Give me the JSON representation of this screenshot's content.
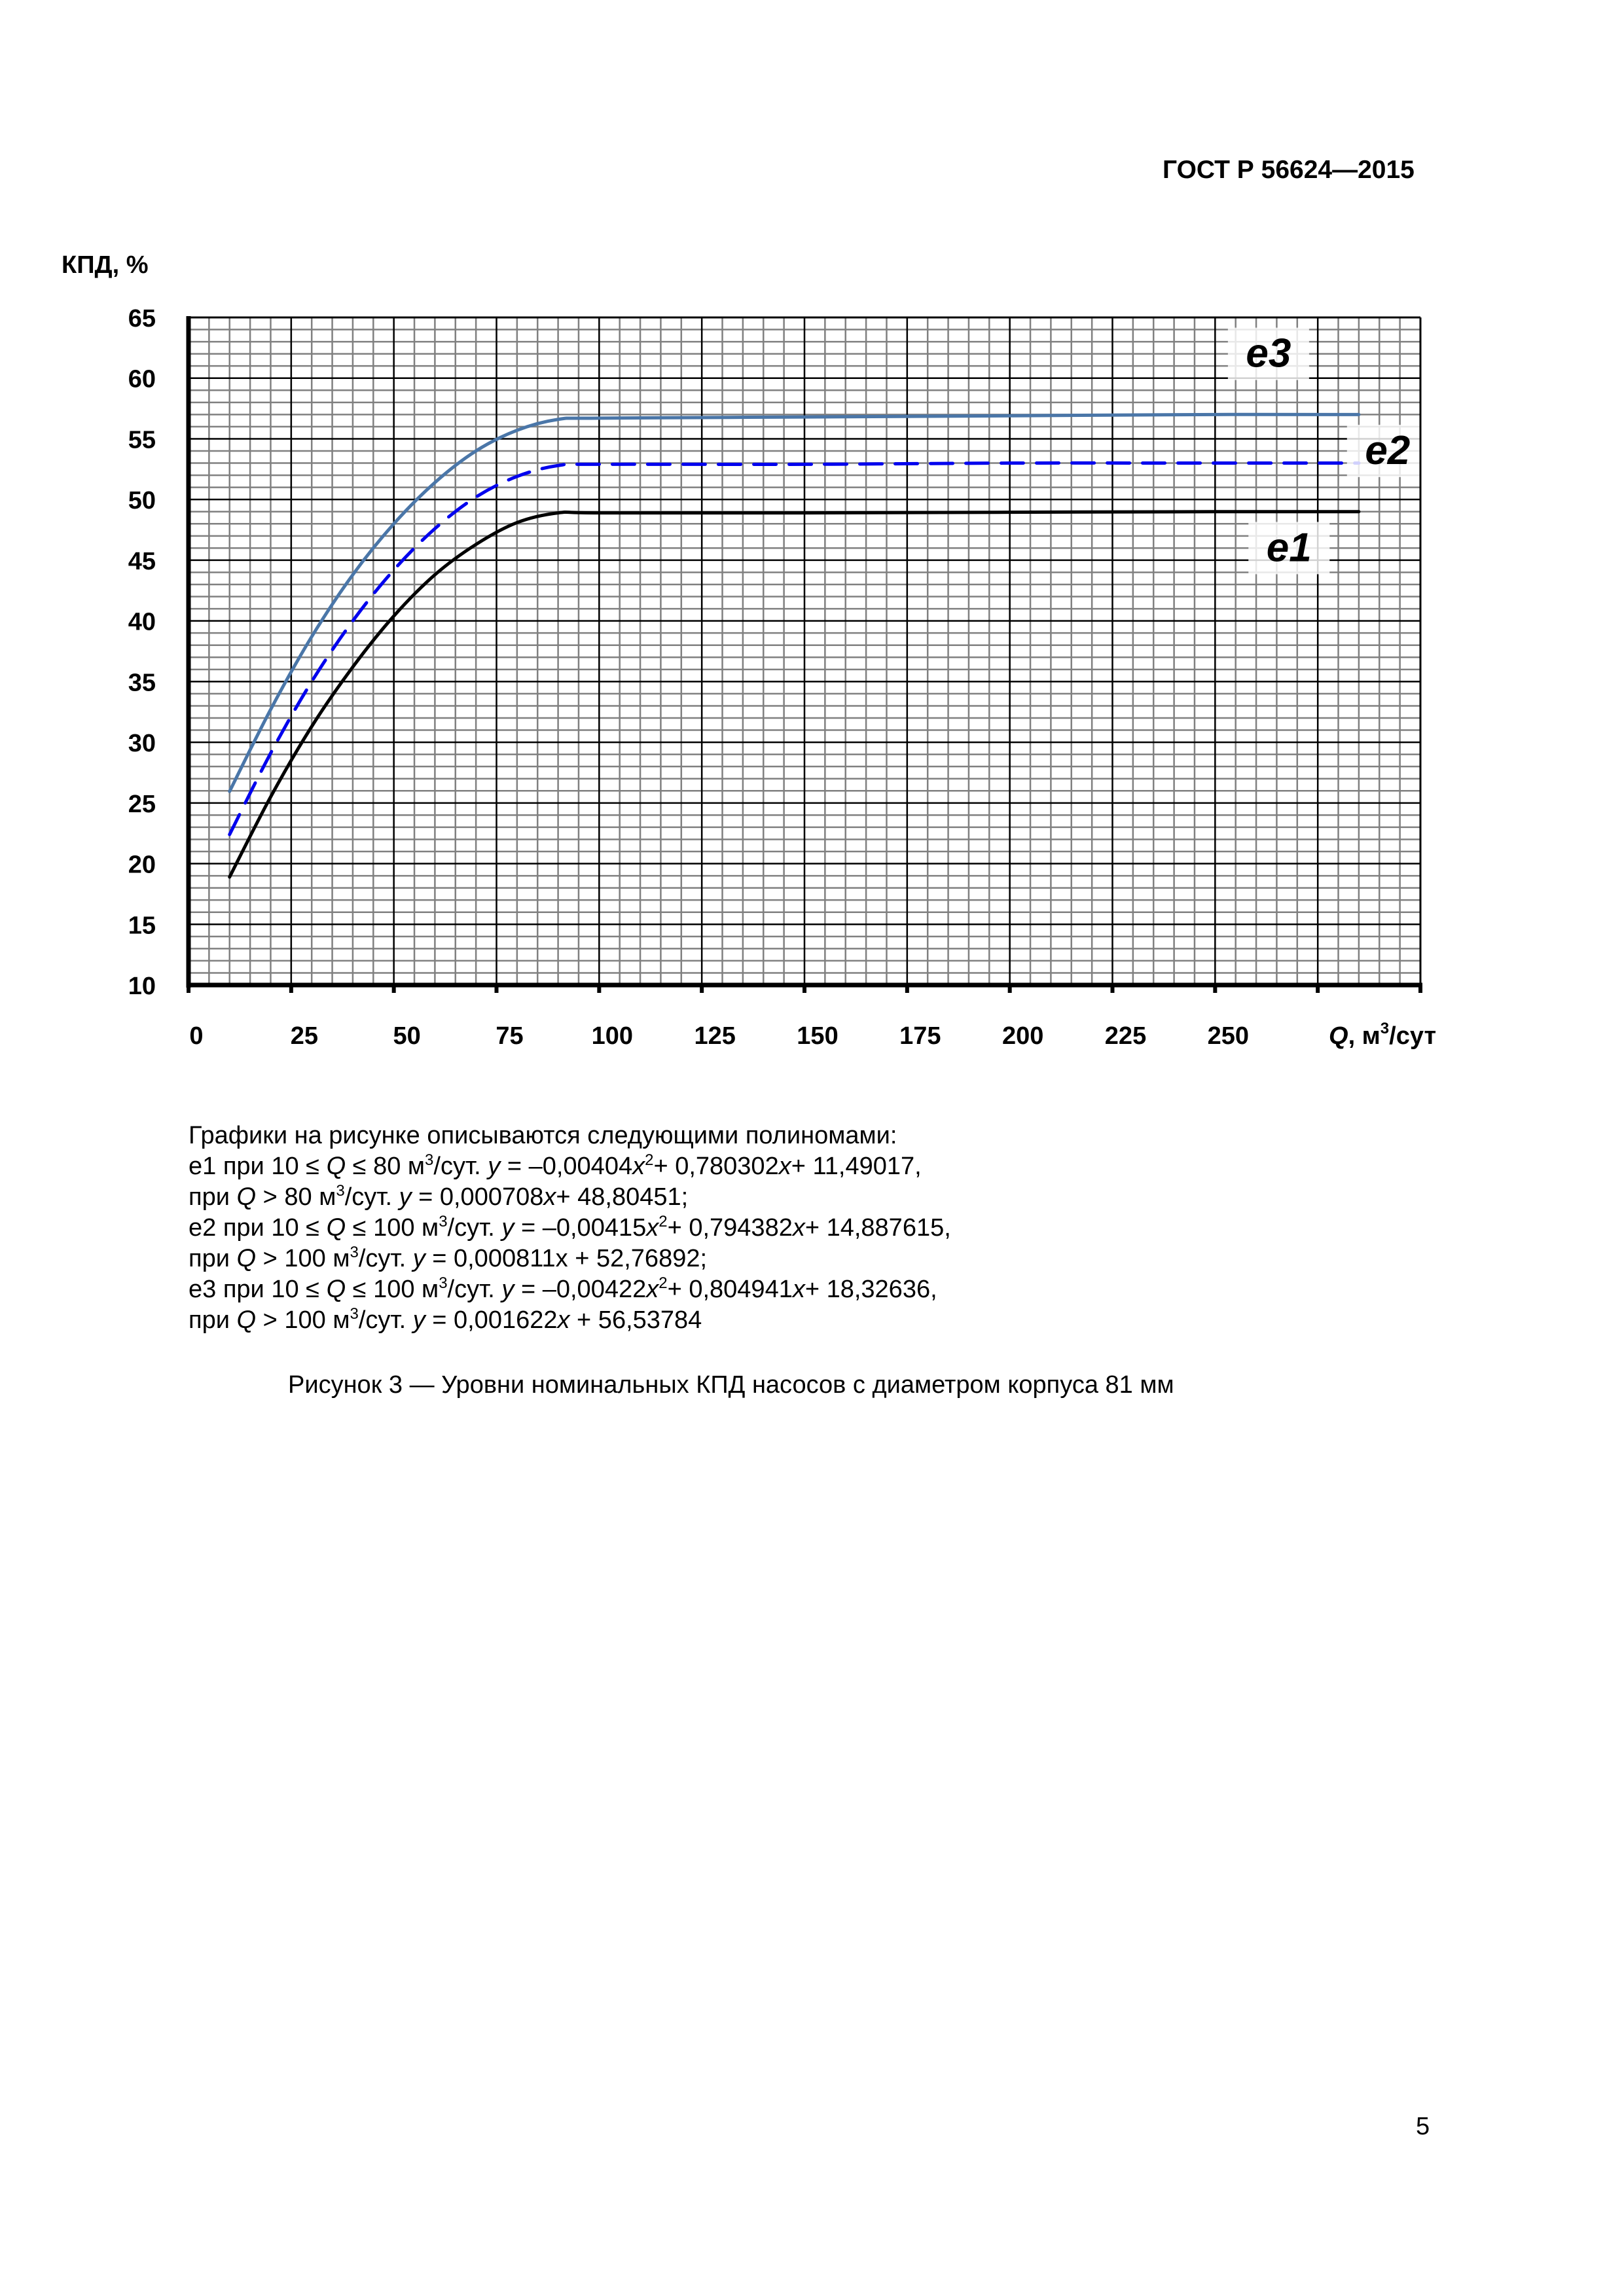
{
  "header": {
    "doc_code": "ГОСТ Р 56624—2015"
  },
  "chart_data": {
    "type": "line",
    "title": "",
    "ylabel": "КПД, %",
    "xlabel_prefix": "Q",
    "xlabel_suffix": ", м",
    "xlabel_sup": "3",
    "xlabel_tail": "/сут",
    "xlim": [
      0,
      300
    ],
    "ylim": [
      10,
      65
    ],
    "grid": true,
    "grid_minor_x": 5,
    "grid_minor_y": 1,
    "x_ticks": [
      0,
      25,
      50,
      75,
      100,
      125,
      150,
      175,
      200,
      225,
      250
    ],
    "x_tick_labels": [
      "0",
      "25",
      "50",
      "75",
      "100",
      "125",
      "150",
      "175",
      "200",
      "225",
      "250"
    ],
    "y_ticks": [
      10,
      15,
      20,
      25,
      30,
      35,
      40,
      45,
      50,
      55,
      60,
      65
    ],
    "y_tick_labels": [
      "10",
      "15",
      "20",
      "25",
      "30",
      "35",
      "40",
      "45",
      "50",
      "55",
      "60",
      "65"
    ],
    "legend_position": "inline-right",
    "series": [
      {
        "name": "e1",
        "color": "#000000",
        "style": "solid",
        "x": [
          10,
          20,
          30,
          40,
          50,
          60,
          70,
          80,
          90,
          100,
          150,
          200,
          250,
          285
        ],
        "values": [
          18.9,
          25.5,
          31.3,
          36.2,
          40.4,
          43.8,
          46.3,
          48.1,
          48.9,
          48.9,
          48.9,
          48.95,
          49.0,
          49.0
        ]
      },
      {
        "name": "e2",
        "color": "#0000ee",
        "style": "dashed",
        "x": [
          10,
          20,
          30,
          40,
          50,
          60,
          70,
          80,
          90,
          100,
          150,
          200,
          250,
          285
        ],
        "values": [
          22.4,
          29.1,
          35.0,
          40.0,
          44.2,
          47.6,
          50.2,
          51.9,
          52.8,
          52.9,
          52.9,
          53.0,
          53.0,
          53.0
        ]
      },
      {
        "name": "e3",
        "color": "#4a76a8",
        "style": "solid",
        "x": [
          10,
          20,
          30,
          40,
          50,
          60,
          70,
          80,
          90,
          100,
          150,
          200,
          250,
          285
        ],
        "values": [
          25.95,
          32.7,
          38.7,
          43.8,
          48.0,
          51.4,
          54.0,
          55.7,
          56.6,
          56.7,
          56.8,
          56.9,
          57.0,
          57.0
        ]
      }
    ],
    "annotations": [
      {
        "text": "e3",
        "x": 263,
        "y": 62
      },
      {
        "text": "e2",
        "x": 292,
        "y": 54
      },
      {
        "text": "e1",
        "x": 268,
        "y": 46
      }
    ]
  },
  "notes": {
    "intro": "Графики на рисунке описываются следующими полиномами:",
    "lines": [
      [
        "e1 при 10 ≤ ",
        "Q",
        " ≤ 80 м",
        "3",
        "/сут.  ",
        "y",
        " = –0,00404",
        "x",
        "2",
        "+ 0,780302",
        "x",
        "+ 11,49017,"
      ],
      [
        "при ",
        "Q",
        " > 80 м",
        "3",
        "/сут.  ",
        "y",
        " = 0,000708",
        "x",
        "",
        "+ 48,80451;",
        "",
        ""
      ],
      [
        "e2 при 10 ≤ ",
        "Q",
        " ≤ 100 м",
        "3",
        "/сут.  ",
        "y",
        " = –0,00415",
        "x",
        "2",
        "+ 0,794382",
        "x",
        "+ 14,887615,"
      ],
      [
        "при ",
        "Q",
        " > 100 м",
        "3",
        "/сут.  ",
        "y",
        " = 0,000811x + 52,76892;",
        "",
        "",
        "",
        "",
        ""
      ],
      [
        "e3 при 10 ≤ ",
        "Q",
        " ≤ 100 м",
        "3",
        "/сут.  ",
        "y",
        " = –0,00422",
        "x",
        "2",
        "+ 0,804941",
        "x",
        "+ 18,32636,"
      ],
      [
        "при ",
        "Q",
        " > 100 м",
        "3",
        "/сут.  ",
        "y",
        " = 0,001622",
        "x",
        "",
        " + 56,53784",
        "",
        ""
      ]
    ]
  },
  "caption": "Рисунок 3 — Уровни номинальных КПД насосов с диаметром корпуса 81 мм",
  "page_number": "5"
}
